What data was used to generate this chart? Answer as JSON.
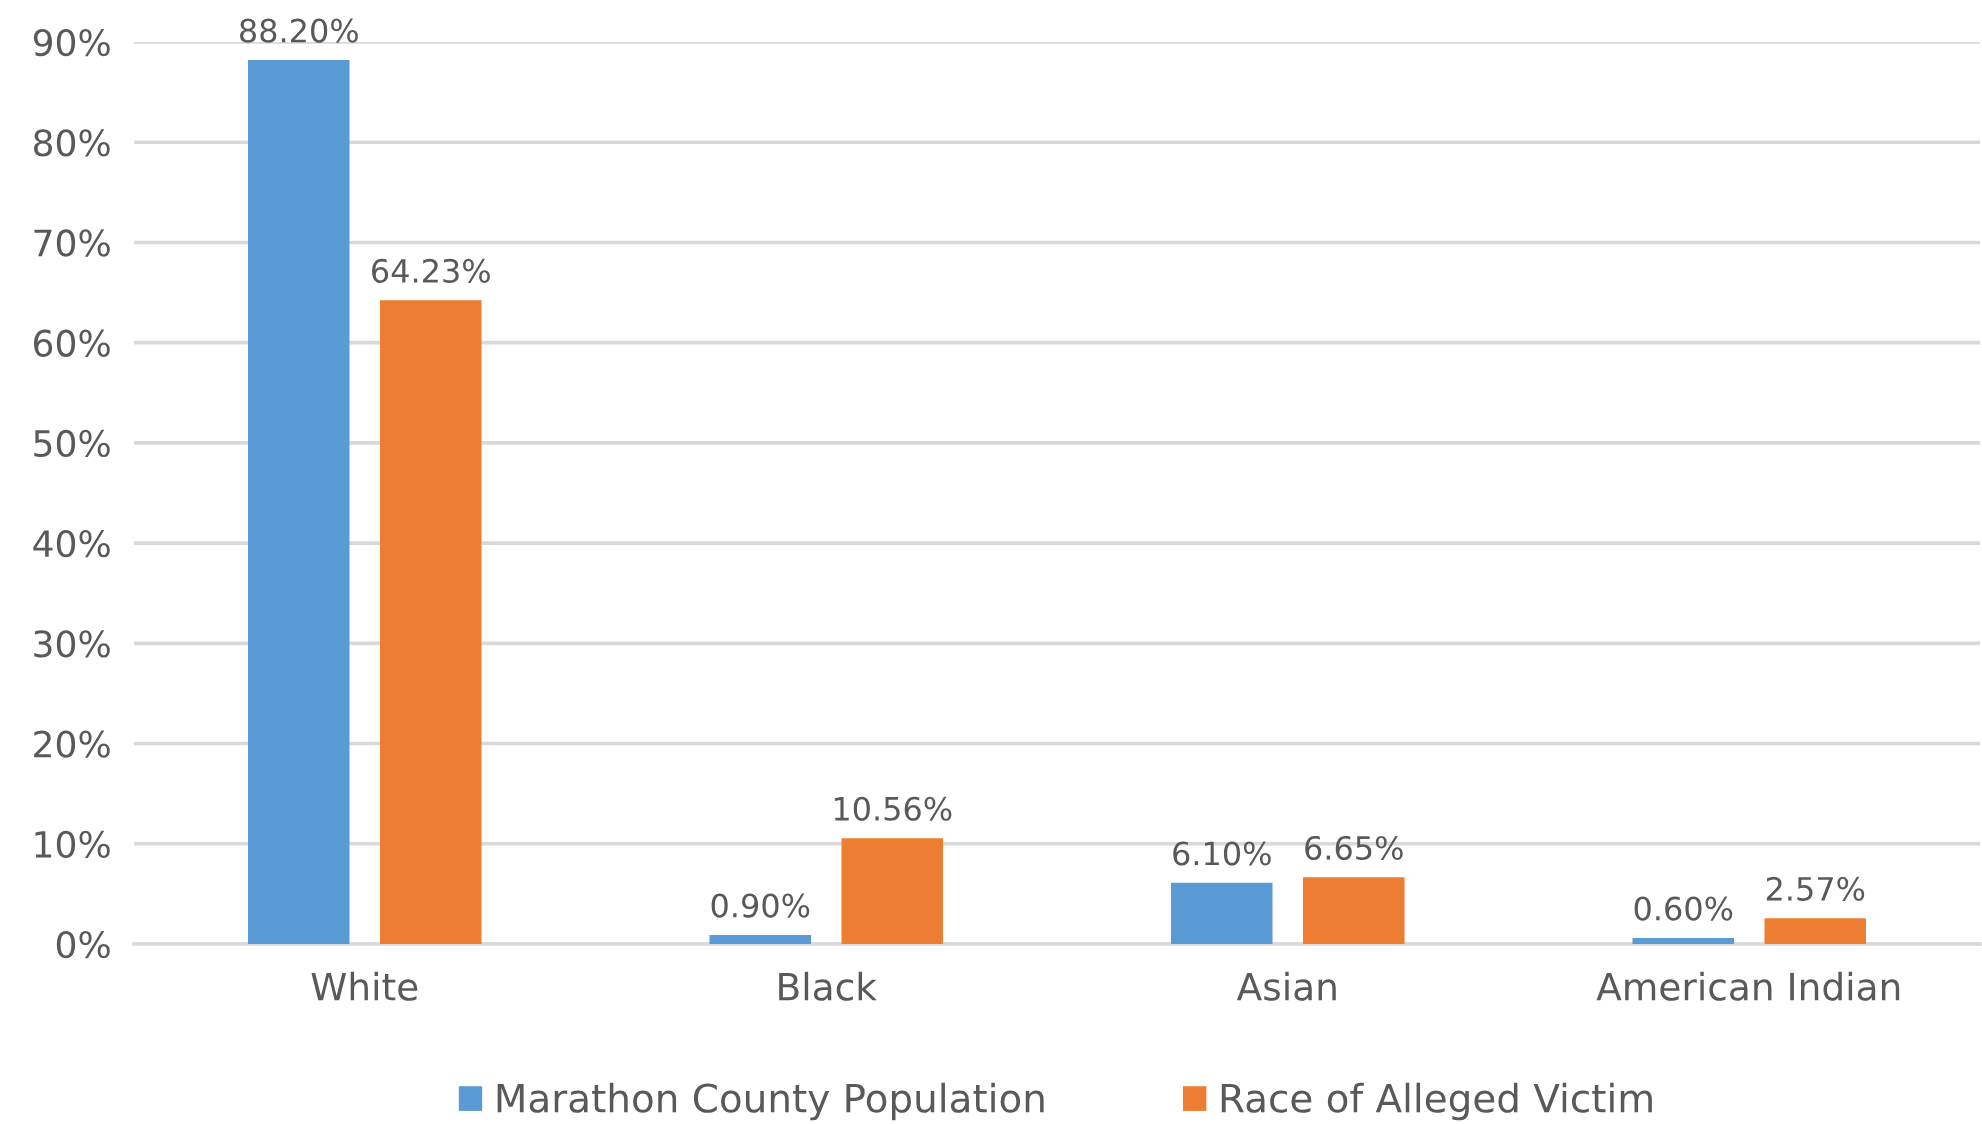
{
  "chart_data": {
    "type": "bar",
    "categories": [
      "White",
      "Black",
      "Asian",
      "American Indian"
    ],
    "series": [
      {
        "name": "Marathon County Population",
        "color": "#5b9bd5",
        "values": [
          88.2,
          0.9,
          6.1,
          0.6
        ],
        "value_labels": [
          "88.20%",
          "0.90%",
          "6.10%",
          "0.60%"
        ]
      },
      {
        "name": "Race of Alleged Victim",
        "color": "#ed7d31",
        "values": [
          64.23,
          10.56,
          6.65,
          2.57
        ],
        "value_labels": [
          "64.23%",
          "10.56%",
          "6.65%",
          "2.57%"
        ]
      }
    ],
    "ylim": [
      0,
      90
    ],
    "yticks": [
      {
        "value": 0,
        "label": "0%"
      },
      {
        "value": 10,
        "label": "10%"
      },
      {
        "value": 20,
        "label": "20%"
      },
      {
        "value": 30,
        "label": "30%"
      },
      {
        "value": 40,
        "label": "40%"
      },
      {
        "value": 50,
        "label": "50%"
      },
      {
        "value": 60,
        "label": "60%"
      },
      {
        "value": 70,
        "label": "70%"
      },
      {
        "value": 80,
        "label": "80%"
      },
      {
        "value": 90,
        "label": "90%"
      }
    ],
    "grid": "y",
    "legend": "bottom"
  }
}
